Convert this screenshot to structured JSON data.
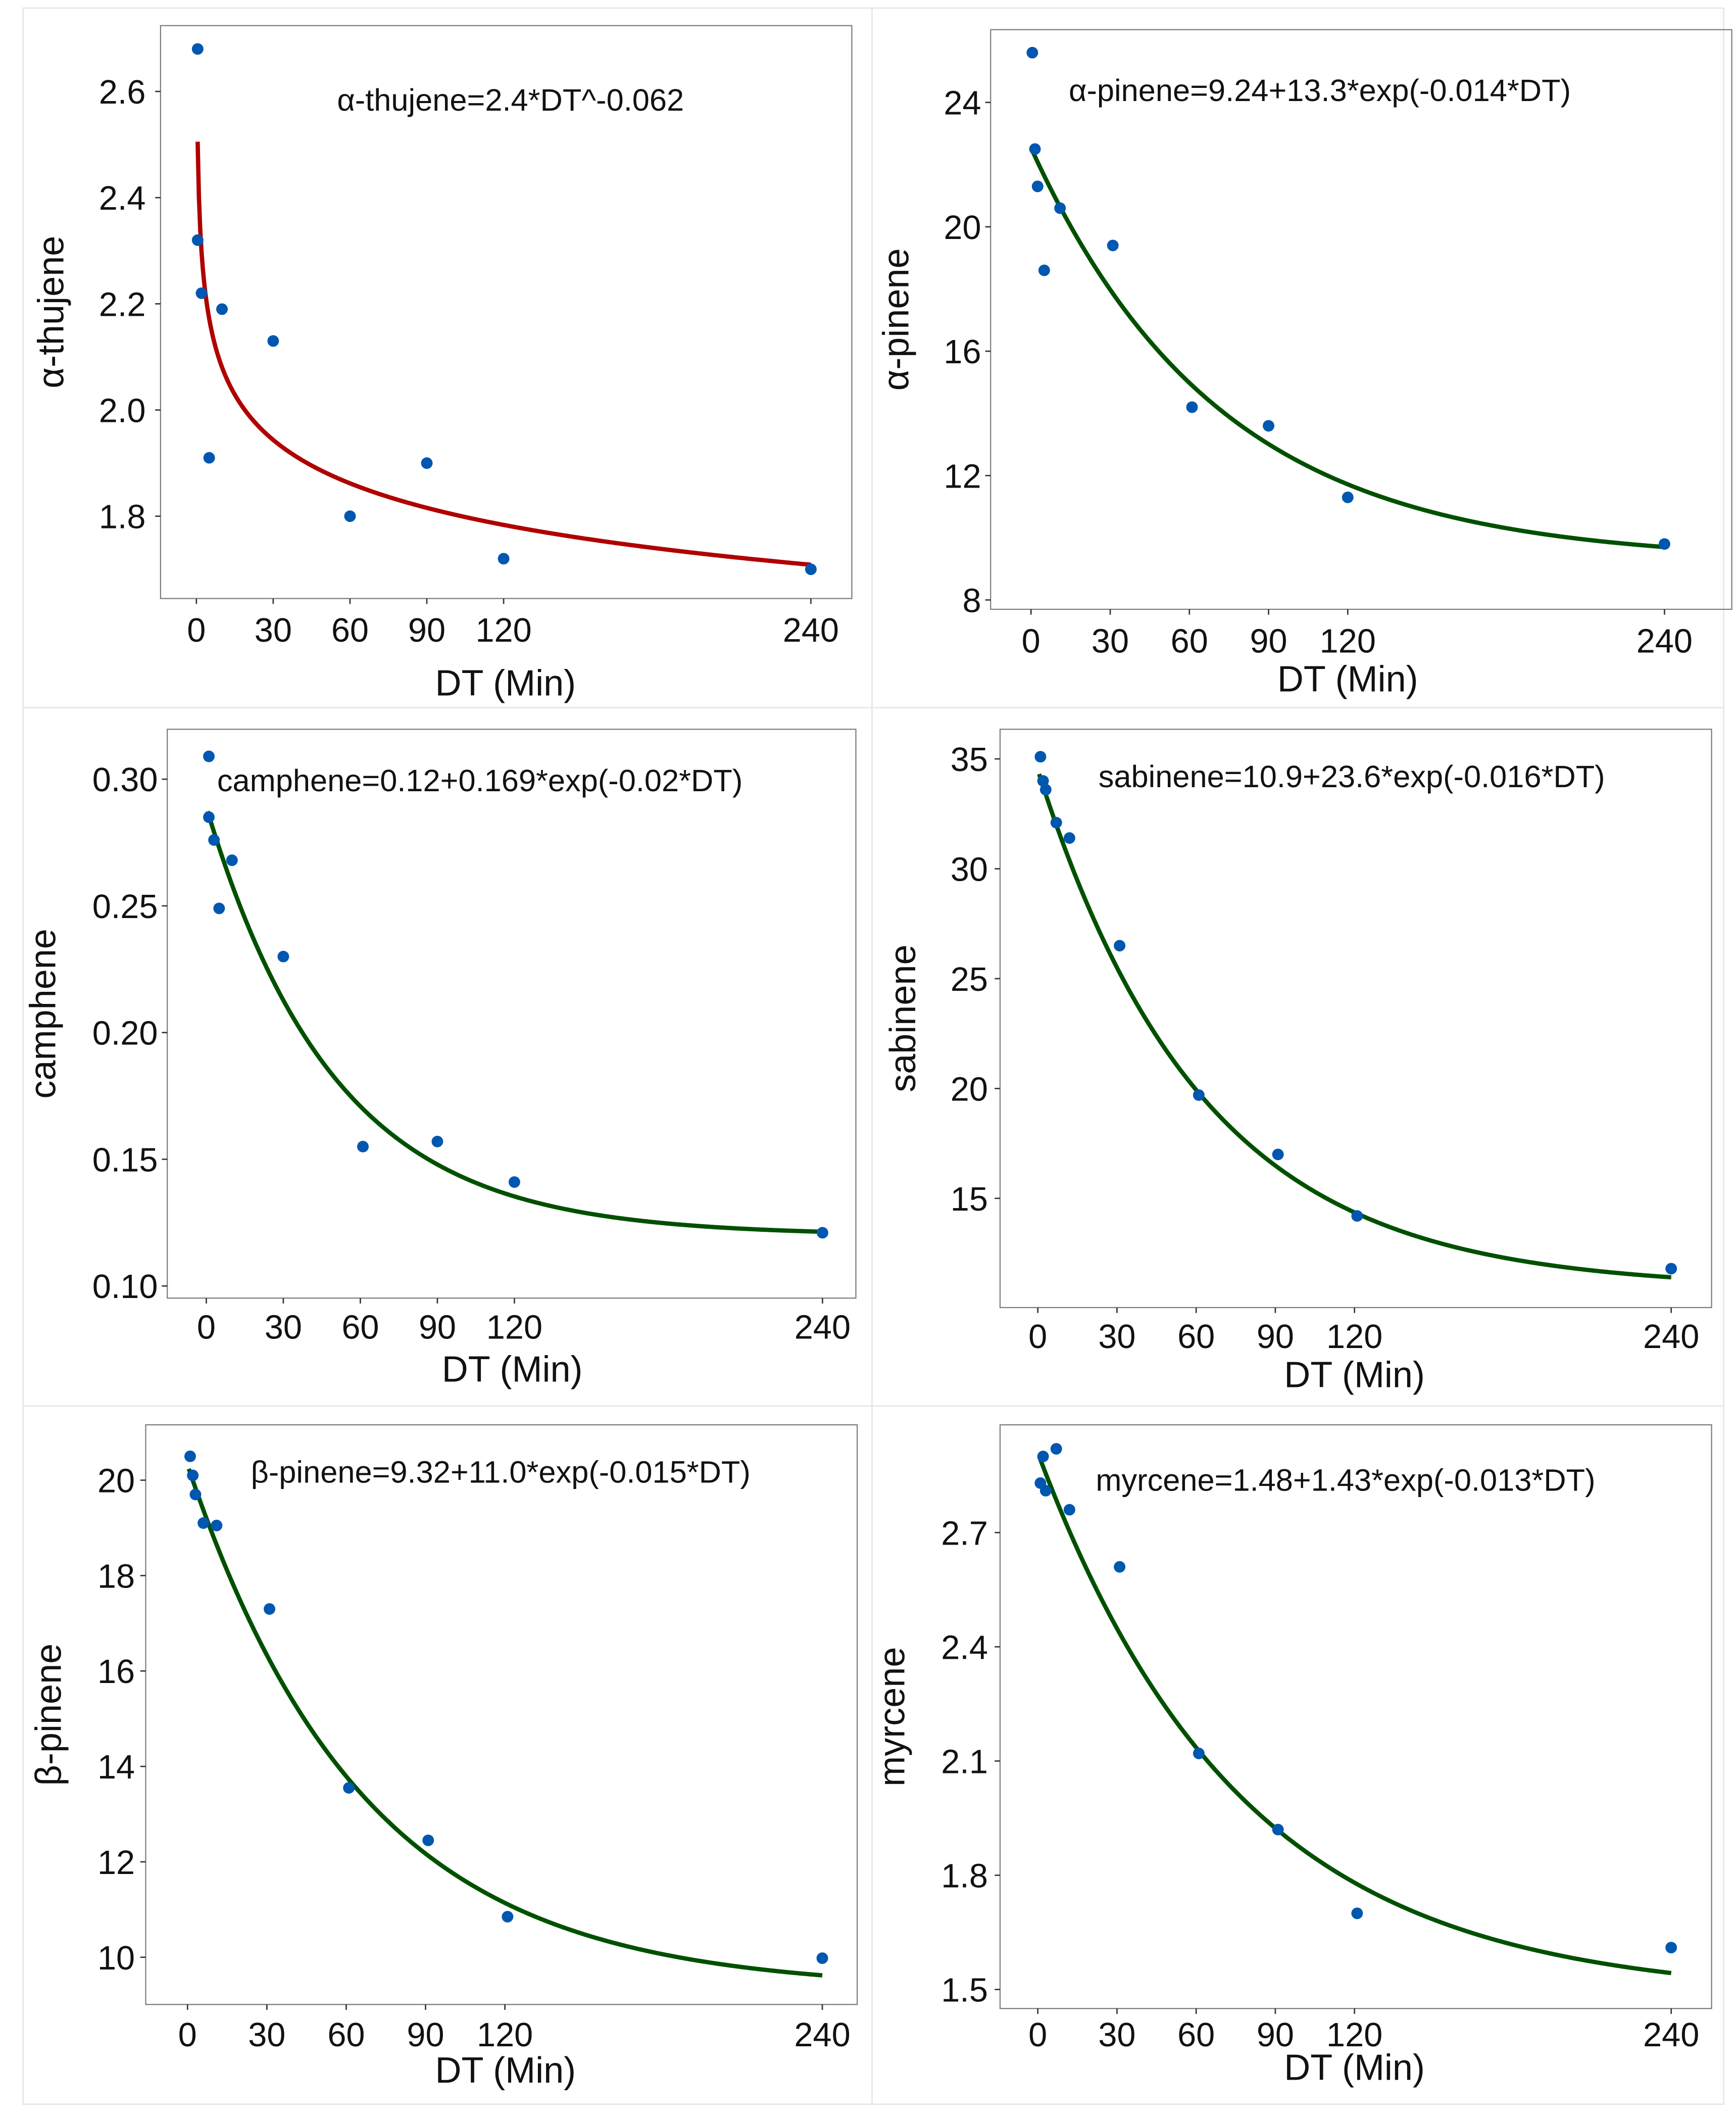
{
  "chart_data": [
    {
      "type": "scatter",
      "title": "",
      "equation": "α-thujene=2.4*DT^-0.062",
      "model": {
        "kind": "power",
        "a": 2.4,
        "b": -0.062
      },
      "xlabel": "DT (Min)",
      "ylabel": "α-thujene",
      "xlim": [
        -14,
        256
      ],
      "ylim": [
        1.645,
        2.724
      ],
      "xticks": [
        0,
        30,
        60,
        90,
        120,
        240
      ],
      "xtick_labels": [
        "0",
        "30",
        "60",
        "90",
        "120",
        "240"
      ],
      "yticks": [
        1.8,
        2.0,
        2.2,
        2.4,
        2.6
      ],
      "ytick_labels": [
        "1.8",
        "2.0",
        "2.2",
        "2.4",
        "2.6"
      ],
      "x": [
        0.5,
        0.5,
        2,
        5,
        10,
        30,
        60,
        90,
        120,
        240
      ],
      "y": [
        2.68,
        2.32,
        2.22,
        1.91,
        2.19,
        2.13,
        1.8,
        1.9,
        1.72,
        1.7
      ],
      "fit_color": "#b00000",
      "point_color": "#0057b0"
    },
    {
      "type": "scatter",
      "equation": "α-pinene=9.24+13.3*exp(-0.014*DT)",
      "model": {
        "kind": "exp",
        "c": 9.24,
        "a": 13.3,
        "k": -0.014
      },
      "xlabel": "DT (Min)",
      "ylabel": "α-pinene",
      "xlim": [
        -15.3,
        265.5
      ],
      "ylim": [
        7.7,
        26.34
      ],
      "xticks": [
        0,
        30,
        60,
        90,
        120,
        240
      ],
      "xtick_labels": [
        "0",
        "30",
        "60",
        "90",
        "120",
        "240"
      ],
      "yticks": [
        8,
        12,
        16,
        20,
        24
      ],
      "ytick_labels": [
        "8",
        "12",
        "16",
        "20",
        "24"
      ],
      "x": [
        0.5,
        1.5,
        2.5,
        5,
        11,
        31,
        61,
        90,
        120,
        240
      ],
      "y": [
        25.6,
        22.5,
        21.3,
        18.6,
        20.6,
        19.4,
        14.2,
        13.6,
        11.3,
        9.8
      ],
      "fit_color": "#005000",
      "point_color": "#0057b0"
    },
    {
      "type": "scatter",
      "equation": "camphene=0.12+0.169*exp(-0.02*DT)",
      "model": {
        "kind": "exp",
        "c": 0.12,
        "a": 0.169,
        "k": -0.02
      },
      "xlabel": "DT (Min)",
      "ylabel": "camphene",
      "xlim": [
        -15.2,
        253
      ],
      "ylim": [
        0.0952,
        0.3197
      ],
      "xticks": [
        0,
        30,
        60,
        90,
        120,
        240
      ],
      "xtick_labels": [
        "0",
        "30",
        "60",
        "90",
        "120",
        "240"
      ],
      "yticks": [
        0.1,
        0.15,
        0.2,
        0.25,
        0.3
      ],
      "ytick_labels": [
        "0.10",
        "0.15",
        "0.20",
        "0.25",
        "0.30"
      ],
      "x": [
        1,
        1,
        3,
        5,
        10,
        30,
        61,
        90,
        120,
        240
      ],
      "y": [
        0.309,
        0.285,
        0.276,
        0.249,
        0.268,
        0.23,
        0.155,
        0.157,
        0.141,
        0.121
      ],
      "fit_color": "#005000",
      "point_color": "#0057b0"
    },
    {
      "type": "scatter",
      "equation": "sabinene=10.9+23.6*exp(-0.016*DT)",
      "model": {
        "kind": "exp",
        "c": 10.9,
        "a": 23.6,
        "k": -0.016
      },
      "xlabel": "DT (Min)",
      "ylabel": "sabinene",
      "xlim": [
        -14.3,
        255.3
      ],
      "ylim": [
        10.03,
        36.35
      ],
      "xticks": [
        0,
        30,
        60,
        90,
        120,
        240
      ],
      "xtick_labels": [
        "0",
        "30",
        "60",
        "90",
        "120",
        "240"
      ],
      "yticks": [
        15,
        20,
        25,
        30,
        35
      ],
      "ytick_labels": [
        "15",
        "20",
        "25",
        "30",
        "35"
      ],
      "x": [
        1,
        2,
        3,
        7,
        12,
        31,
        61,
        91,
        121,
        240
      ],
      "y": [
        35.1,
        34.0,
        33.6,
        32.1,
        31.4,
        26.5,
        19.7,
        17.0,
        14.2,
        11.8
      ],
      "fit_color": "#005000",
      "point_color": "#0057b0"
    },
    {
      "type": "scatter",
      "equation": "β-pinene=9.32+11.0*exp(-0.015*DT)",
      "model": {
        "kind": "exp",
        "c": 9.32,
        "a": 11.0,
        "k": -0.015
      },
      "xlabel": "DT (Min)",
      "ylabel": "β-pinene",
      "xlim": [
        -15.8,
        253.2
      ],
      "ylim": [
        9.01,
        21.16
      ],
      "xticks": [
        0,
        30,
        60,
        90,
        120,
        240
      ],
      "xtick_labels": [
        "0",
        "30",
        "60",
        "90",
        "120",
        "240"
      ],
      "yticks": [
        10,
        12,
        14,
        16,
        18,
        20
      ],
      "ytick_labels": [
        "10",
        "12",
        "14",
        "16",
        "18",
        "20"
      ],
      "x": [
        1,
        2,
        3,
        6,
        11,
        31,
        61,
        91,
        121,
        240
      ],
      "y": [
        20.5,
        20.1,
        19.7,
        19.1,
        19.05,
        17.3,
        13.55,
        12.45,
        10.85,
        9.98
      ],
      "fit_color": "#005000",
      "point_color": "#0057b0"
    },
    {
      "type": "scatter",
      "equation": "myrcene=1.48+1.43*exp(-0.013*DT)",
      "model": {
        "kind": "exp",
        "c": 1.48,
        "a": 1.43,
        "k": -0.013
      },
      "xlabel": "DT (Min)",
      "ylabel": "myrcene",
      "xlim": [
        -14.3,
        255.3
      ],
      "ylim": [
        1.45,
        2.983
      ],
      "xticks": [
        0,
        30,
        60,
        90,
        120,
        240
      ],
      "xtick_labels": [
        "0",
        "30",
        "60",
        "90",
        "120",
        "240"
      ],
      "yticks": [
        1.5,
        1.8,
        2.1,
        2.4,
        2.7
      ],
      "ytick_labels": [
        "1.5",
        "1.8",
        "2.1",
        "2.4",
        "2.7"
      ],
      "x": [
        1,
        2,
        3,
        7,
        12,
        31,
        61,
        91,
        121,
        240
      ],
      "y": [
        2.83,
        2.9,
        2.81,
        2.92,
        2.76,
        2.61,
        2.12,
        1.92,
        1.7,
        1.61
      ],
      "fit_color": "#005000",
      "point_color": "#0057b0"
    }
  ]
}
